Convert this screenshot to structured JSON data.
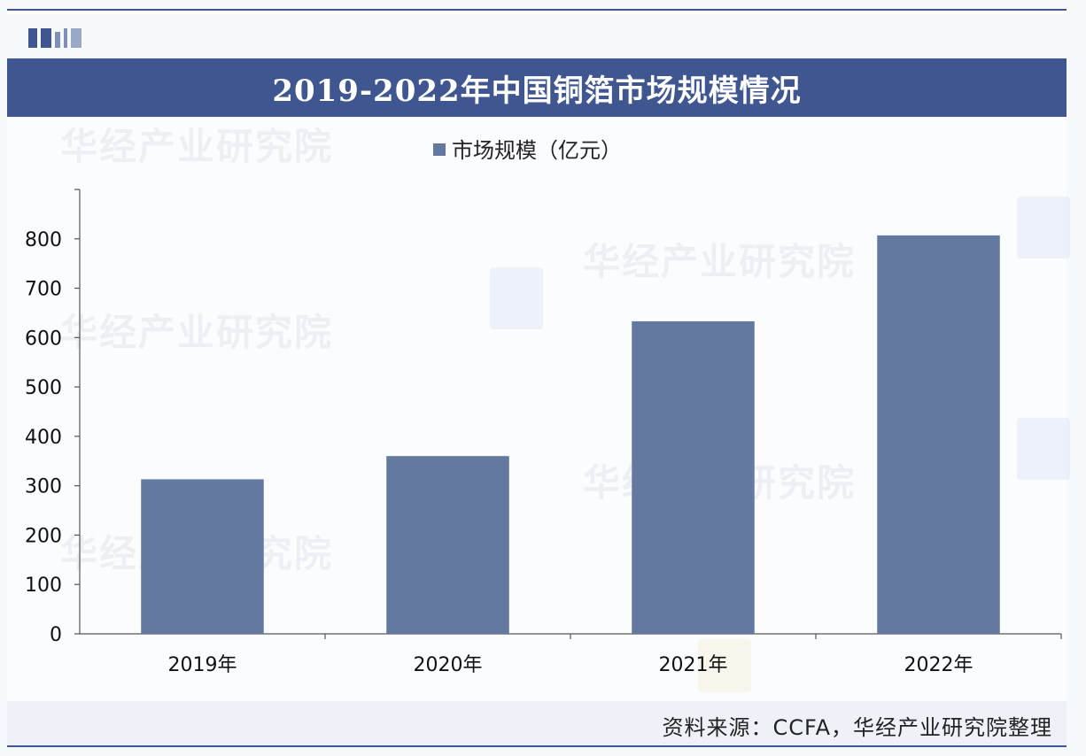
{
  "header": {
    "title": "2019-2022年中国铜箔市场规模情况"
  },
  "watermark_text": "华经产业研究院",
  "source_text": "资料来源：CCFA，华经产业研究院整理",
  "colors": {
    "brand": "#3f5690",
    "bar": "#63799f"
  },
  "chart_data": {
    "type": "bar",
    "categories": [
      "2019年",
      "2020年",
      "2021年",
      "2022年"
    ],
    "series": [
      {
        "name": "市场规模（亿元）",
        "values": [
          313,
          360,
          633,
          807
        ]
      }
    ],
    "title": "2019-2022年中国铜箔市场规模情况",
    "xlabel": "",
    "ylabel": "",
    "ylim": [
      0,
      900
    ],
    "yticks": [
      0,
      100,
      200,
      300,
      400,
      500,
      600,
      700,
      800
    ],
    "grid": false,
    "legend": "top-center"
  }
}
